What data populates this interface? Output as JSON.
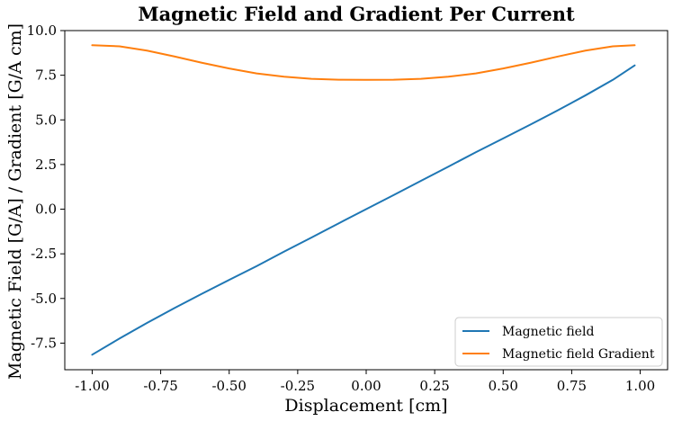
{
  "chart_data": {
    "type": "line",
    "title": "Magnetic Field and Gradient Per Current",
    "xlabel": "Displacement [cm]",
    "ylabel": "Magnetic Field [G/A] / Gradient [G/A cm]",
    "xlim": [
      -1.1,
      1.1
    ],
    "ylim": [
      -8.99,
      10.0
    ],
    "xticks": [
      -1.0,
      -0.75,
      -0.5,
      -0.25,
      0.0,
      0.25,
      0.5,
      0.75,
      1.0
    ],
    "xtick_labels": [
      "-1.00",
      "-0.75",
      "-0.50",
      "-0.25",
      "0.00",
      "0.25",
      "0.50",
      "0.75",
      "1.00"
    ],
    "yticks": [
      -7.5,
      -5.0,
      -2.5,
      0.0,
      2.5,
      5.0,
      7.5,
      10.0
    ],
    "ytick_labels": [
      "-7.5",
      "-5.0",
      "-2.5",
      "0.0",
      "2.5",
      "5.0",
      "7.5",
      "10.0"
    ],
    "grid": false,
    "legend_position": "bottom-right",
    "x": [
      -1.0,
      -0.9,
      -0.8,
      -0.7,
      -0.6,
      -0.5,
      -0.4,
      -0.3,
      -0.2,
      -0.1,
      0.0,
      0.1,
      0.2,
      0.3,
      0.4,
      0.5,
      0.6,
      0.7,
      0.8,
      0.9,
      0.98
    ],
    "series": [
      {
        "name": "Magnetic field",
        "color": "#1f77b4",
        "values": [
          -8.15,
          -7.24,
          -6.37,
          -5.54,
          -4.74,
          -3.96,
          -3.19,
          -2.38,
          -1.59,
          -0.79,
          0.0,
          0.79,
          1.59,
          2.38,
          3.19,
          3.96,
          4.74,
          5.54,
          6.37,
          7.24,
          8.05
        ]
      },
      {
        "name": "Magnetic field Gradient",
        "color": "#ff7f0e",
        "values": [
          9.18,
          9.12,
          8.88,
          8.55,
          8.2,
          7.88,
          7.6,
          7.42,
          7.3,
          7.25,
          7.24,
          7.25,
          7.3,
          7.42,
          7.6,
          7.88,
          8.2,
          8.55,
          8.88,
          9.12,
          9.18
        ]
      }
    ]
  }
}
